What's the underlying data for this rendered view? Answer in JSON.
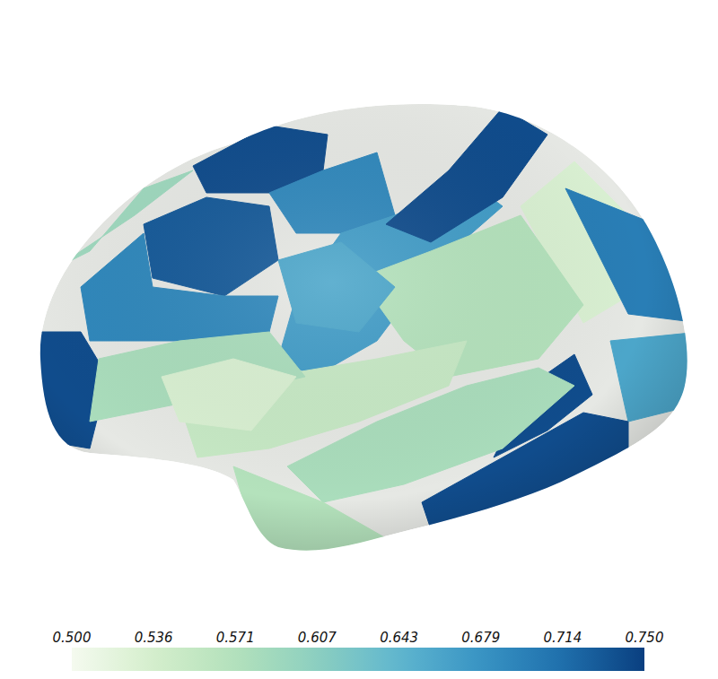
{
  "chart_data": {
    "type": "brain_surface",
    "colorbar_range": [
      0.5,
      0.75
    ],
    "colorbar_ticks": [
      {
        "value": 0.5,
        "label": "0.500"
      },
      {
        "value": 0.5357,
        "label": "0.536"
      },
      {
        "value": 0.5714,
        "label": "0.571"
      },
      {
        "value": 0.6071,
        "label": "0.607"
      },
      {
        "value": 0.6429,
        "label": "0.643"
      },
      {
        "value": 0.6786,
        "label": "0.679"
      },
      {
        "value": 0.7143,
        "label": "0.714"
      },
      {
        "value": 0.75,
        "label": "0.750"
      }
    ],
    "values": [
      0.74,
      0.69,
      0.73,
      0.69,
      0.74,
      0.59,
      0.67,
      0.74,
      0.53,
      0.57,
      0.7,
      0.66,
      0.74,
      0.74,
      0.58,
      0.55,
      0.58,
      0.57,
      0.53,
      0.66
    ]
  }
}
